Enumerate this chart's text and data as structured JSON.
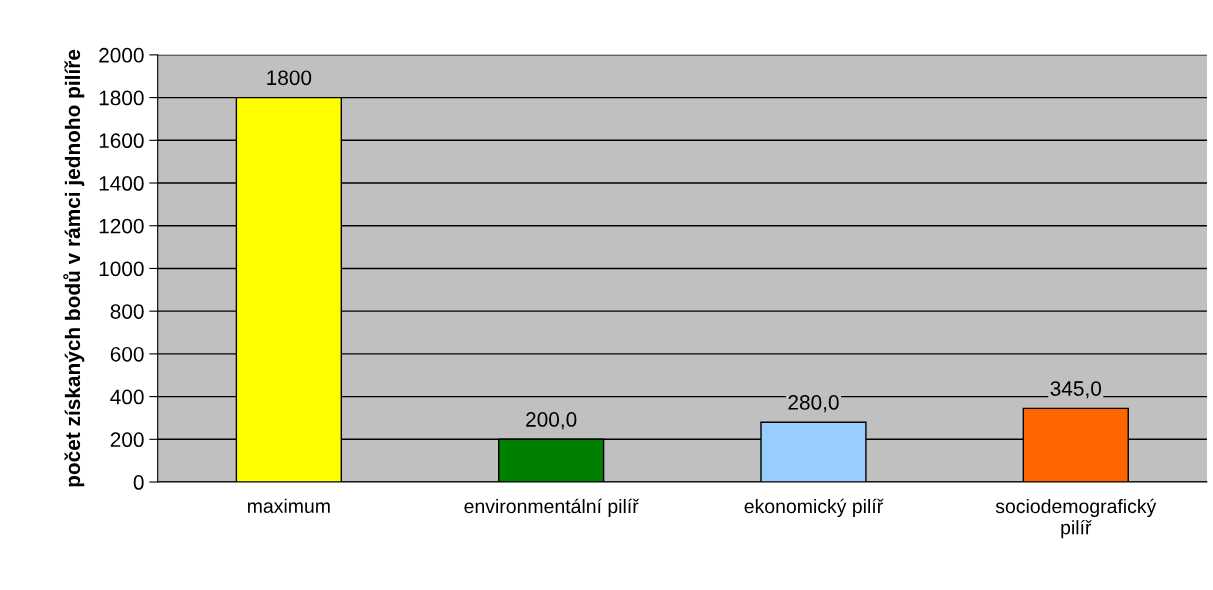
{
  "chart_data": {
    "type": "bar",
    "ylabel": "počet získaných bodů v rámci jednoho pilíře",
    "categories": [
      "maximum",
      "environmentální pilíř",
      "ekonomický pilíř",
      "sociodemografický\npilíř"
    ],
    "values": [
      1800,
      200,
      280,
      345
    ],
    "colors": [
      "#ffff00",
      "#008000",
      "#99ccff",
      "#ff6600"
    ],
    "value_labels": [
      "1800",
      "200,0",
      "280,0",
      "345,0"
    ],
    "ylim": [
      0,
      2000
    ],
    "yticks": [
      0,
      200,
      400,
      600,
      800,
      1000,
      1200,
      1400,
      1600,
      1800,
      2000
    ],
    "grid": "y"
  }
}
